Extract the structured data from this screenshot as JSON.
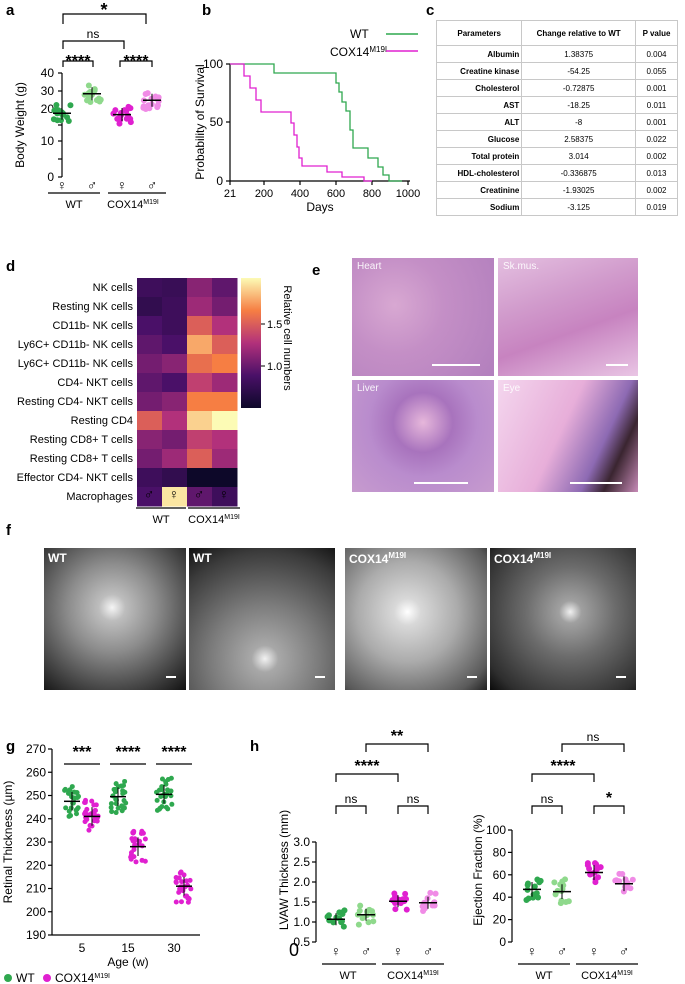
{
  "panels": {
    "a": "a",
    "b": "b",
    "c": "c",
    "d": "d",
    "e": "e",
    "f": "f",
    "g": "g",
    "h": "h"
  },
  "groups": {
    "wt": "WT",
    "cox": "COX14",
    "cox_sup": "M19I",
    "female": "♀",
    "male": "♂"
  },
  "panel_a": {
    "ylabel": "Body Weight (g)",
    "yticks": [
      "0",
      "10",
      "20",
      "30",
      "40"
    ],
    "sig_top": "*",
    "sig_ns": "ns",
    "sig_l": "****",
    "sig_r": "****"
  },
  "panel_b": {
    "ylabel": "Probability of Survival",
    "xlabel": "Days",
    "yticks": [
      "0",
      "50",
      "100"
    ],
    "xticks": [
      "21",
      "200",
      "400",
      "600",
      "800",
      "1000"
    ],
    "legend_wt": "WT",
    "legend_cox": "COX14",
    "legend_cox_sup": "M19I"
  },
  "table_c": {
    "headers": [
      "Parameters",
      "Change relative to WT",
      "P value"
    ],
    "rows": [
      [
        "Albumin",
        "1.38375",
        "0.004"
      ],
      [
        "Creatine kinase",
        "-54.25",
        "0.055"
      ],
      [
        "Cholesterol",
        "-0.72875",
        "0.001"
      ],
      [
        "AST",
        "-18.25",
        "0.011"
      ],
      [
        "ALT",
        "-8",
        "0.001"
      ],
      [
        "Glucose",
        "2.58375",
        "0.022"
      ],
      [
        "Total protein",
        "3.014",
        "0.002"
      ],
      [
        "HDL-cholesterol",
        "-0.336875",
        "0.013"
      ],
      [
        "Creatinine",
        "-1.93025",
        "0.002"
      ],
      [
        "Sodium",
        "-3.125",
        "0.019"
      ]
    ]
  },
  "panel_d": {
    "rows": [
      "NK cells",
      "Resting NK cells",
      "CD11b- NK cells",
      "Ly6C+ CD11b- NK cells",
      "Ly6C+ CD11b- NK cells",
      "CD4- NKT cells",
      "Resting CD4- NKT cells",
      "Resting CD4",
      "Resting CD8+ T cells",
      "Resting CD8+ T cells",
      "Effector CD4- NKT cells",
      "Macrophages"
    ],
    "cols": [
      "♂",
      "♀",
      "♂",
      "♀"
    ],
    "colorbar_label": "Relative cell numbers",
    "colorbar_ticks": [
      "1.5",
      "1.0"
    ],
    "values": [
      [
        0.95,
        0.93,
        1.15,
        1.05
      ],
      [
        0.9,
        0.95,
        1.2,
        1.1
      ],
      [
        1.0,
        0.95,
        1.4,
        1.25
      ],
      [
        1.05,
        1.0,
        1.6,
        1.4
      ],
      [
        1.1,
        1.15,
        1.45,
        1.5
      ],
      [
        1.05,
        1.0,
        1.3,
        1.2
      ],
      [
        1.1,
        1.15,
        1.5,
        1.5
      ],
      [
        1.4,
        1.25,
        1.7,
        1.8
      ],
      [
        1.15,
        1.1,
        1.3,
        1.25
      ],
      [
        1.1,
        1.2,
        1.4,
        1.2
      ],
      [
        0.95,
        0.9,
        0.75,
        0.75
      ],
      [
        1.0,
        1.75,
        1.05,
        0.95
      ]
    ]
  },
  "panel_e": {
    "heart": "Heart",
    "skmus": "Sk.mus.",
    "liver": "Liver",
    "eye": "Eye"
  },
  "panel_f": {
    "t1": "WT",
    "t2": "WT",
    "t3": "COX14",
    "t3sup": "M19I",
    "t4": "COX14",
    "t4sup": "M19I"
  },
  "panel_g": {
    "ylabel": "Retinal Thickness (µm)",
    "xlabel": "Age (w)",
    "yticks": [
      "190",
      "200",
      "210",
      "220",
      "230",
      "240",
      "250",
      "260",
      "270"
    ],
    "xticks": [
      "5",
      "15",
      "30"
    ],
    "sig": [
      "***",
      "****",
      "****"
    ],
    "legend_wt": "WT",
    "legend_cox": "COX14",
    "legend_cox_sup": "M19I"
  },
  "panel_h1": {
    "ylabel": "LVAW Thickness (mm)",
    "yticks": [
      "0.5",
      "1.0",
      "1.5",
      "2.0",
      "2.5",
      "3.0"
    ],
    "zero": "0",
    "sig_top": "**",
    "sig_mid": "****",
    "sig_ns1": "ns",
    "sig_ns2": "ns"
  },
  "panel_h2": {
    "ylabel": "Ejection Fraction (%)",
    "yticks": [
      "0",
      "20",
      "40",
      "60",
      "80",
      "100"
    ],
    "sig_top": "ns",
    "sig_mid": "****",
    "sig_ns1": "ns",
    "sig_star": "*"
  },
  "colors": {
    "wt_dark": "#2fa84f",
    "wt_light": "#8fd98c",
    "cox_dark": "#e020d0",
    "cox_light": "#f08be6"
  }
}
